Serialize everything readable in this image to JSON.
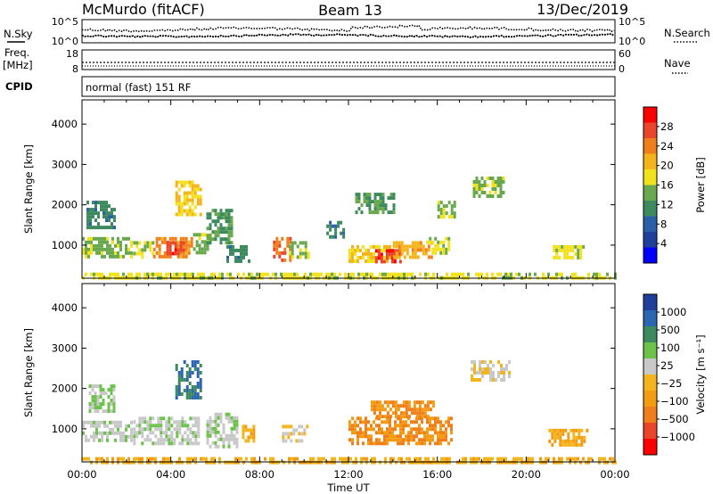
{
  "header": {
    "station": "McMurdo (fitACF)",
    "beam": "Beam 13",
    "date": "13/Dec/2019"
  },
  "noise_panel": {
    "left_label": "N.Sky",
    "right_label": "N.Search",
    "left_ticks": [
      "10^5",
      "10^0"
    ],
    "right_ticks": [
      "10^5",
      "10^0"
    ]
  },
  "freq_panel": {
    "left_label_1": "Freq.",
    "left_label_2": "[MHz]",
    "right_label": "Nave",
    "left_ticks": [
      "18",
      "8"
    ],
    "right_ticks": [
      "60",
      "0"
    ]
  },
  "cpid": {
    "label": "CPID",
    "value": "normal (fast) 151 RF"
  },
  "colorbars": {
    "power": {
      "label": "Power [dB]",
      "ticks": [
        "28",
        "24",
        "20",
        "16",
        "12",
        "8",
        "4"
      ],
      "colors": [
        "#ff0000",
        "#e8452a",
        "#f07e1a",
        "#f4b41c",
        "#f2e21e",
        "#6aa84f",
        "#3d8a5e",
        "#2b5fa8",
        "#1f3f9a",
        "#0000ff"
      ]
    },
    "velocity": {
      "label": "Velocity [m s⁻¹]",
      "ticks": [
        "1000",
        "500",
        "100",
        "25",
        "−25",
        "−100",
        "−500",
        "−1000"
      ],
      "colors": [
        "#1f3f9a",
        "#2b66b0",
        "#3d8a5e",
        "#6cc24a",
        "#c8c8c8",
        "#f4b41c",
        "#f39c12",
        "#f07e1a",
        "#e8452a",
        "#ff0000"
      ]
    }
  },
  "time_axis": {
    "label": "Time UT",
    "ticks": [
      "00:00",
      "04:00",
      "08:00",
      "12:00",
      "16:00",
      "20:00",
      "00:00"
    ]
  },
  "chart_data": [
    {
      "type": "heatmap",
      "title": "",
      "xlabel": "",
      "ylabel": "Slant Range [km]",
      "xlim": [
        0,
        24
      ],
      "ylim": [
        180,
        4600
      ],
      "y_ticks": [
        1000,
        2000,
        3000,
        4000
      ],
      "field": "power",
      "value_range": [
        0,
        30
      ],
      "patches": [
        {
          "t0": 0.0,
          "t1": 2.2,
          "r0": 700,
          "r1": 1200,
          "v": 14
        },
        {
          "t0": 0.2,
          "t1": 1.5,
          "r0": 1400,
          "r1": 2100,
          "v": 10
        },
        {
          "t0": 2.3,
          "t1": 3.2,
          "r0": 700,
          "r1": 1100,
          "v": 16
        },
        {
          "t0": 3.2,
          "t1": 5.0,
          "r0": 700,
          "r1": 1200,
          "v": 22
        },
        {
          "t0": 3.8,
          "t1": 4.6,
          "r0": 800,
          "r1": 1100,
          "v": 26
        },
        {
          "t0": 4.2,
          "t1": 5.4,
          "r0": 1800,
          "r1": 2600,
          "v": 18
        },
        {
          "t0": 5.0,
          "t1": 5.8,
          "r0": 800,
          "r1": 1300,
          "v": 14
        },
        {
          "t0": 5.6,
          "t1": 6.8,
          "r0": 1100,
          "r1": 1900,
          "v": 12
        },
        {
          "t0": 6.5,
          "t1": 7.5,
          "r0": 600,
          "r1": 1000,
          "v": 10
        },
        {
          "t0": 8.6,
          "t1": 9.4,
          "r0": 600,
          "r1": 1200,
          "v": 24
        },
        {
          "t0": 9.3,
          "t1": 10.2,
          "r0": 700,
          "r1": 1100,
          "v": 14
        },
        {
          "t0": 11.0,
          "t1": 11.8,
          "r0": 1200,
          "r1": 1600,
          "v": 10
        },
        {
          "t0": 12.0,
          "t1": 14.0,
          "r0": 600,
          "r1": 1000,
          "v": 18
        },
        {
          "t0": 13.2,
          "t1": 14.3,
          "r0": 600,
          "r1": 900,
          "v": 26
        },
        {
          "t0": 12.3,
          "t1": 14.0,
          "r0": 1800,
          "r1": 2300,
          "v": 12
        },
        {
          "t0": 14.0,
          "t1": 15.8,
          "r0": 700,
          "r1": 1100,
          "v": 20
        },
        {
          "t0": 15.5,
          "t1": 16.5,
          "r0": 800,
          "r1": 1200,
          "v": 16
        },
        {
          "t0": 16.0,
          "t1": 16.8,
          "r0": 1700,
          "r1": 2100,
          "v": 14
        },
        {
          "t0": 17.6,
          "t1": 19.0,
          "r0": 2200,
          "r1": 2700,
          "v": 14
        },
        {
          "t0": 21.2,
          "t1": 22.6,
          "r0": 700,
          "r1": 1000,
          "v": 16
        },
        {
          "t0": 0.0,
          "t1": 24.0,
          "r0": 190,
          "r1": 320,
          "v": 16
        }
      ]
    },
    {
      "type": "heatmap",
      "title": "",
      "xlabel": "Time UT",
      "ylabel": "Slant Range [km]",
      "xlim": [
        0,
        24
      ],
      "ylim": [
        180,
        4600
      ],
      "y_ticks": [
        1000,
        2000,
        3000,
        4000
      ],
      "field": "velocity",
      "value_range": [
        -1000,
        1000
      ],
      "patches": [
        {
          "t0": 0.0,
          "t1": 2.2,
          "r0": 700,
          "r1": 1200,
          "v": 150
        },
        {
          "t0": 0.3,
          "t1": 1.5,
          "r0": 1400,
          "r1": 2100,
          "v": 200
        },
        {
          "t0": 2.3,
          "t1": 5.2,
          "r0": 600,
          "r1": 1300,
          "v": 150
        },
        {
          "t0": 4.2,
          "t1": 5.4,
          "r0": 1800,
          "r1": 2700,
          "v": 600
        },
        {
          "t0": 5.6,
          "t1": 7.0,
          "r0": 600,
          "r1": 1400,
          "v": 150
        },
        {
          "t0": 7.2,
          "t1": 7.8,
          "r0": 700,
          "r1": 1100,
          "v": -150
        },
        {
          "t0": 9.0,
          "t1": 10.2,
          "r0": 700,
          "r1": 1100,
          "v": 20
        },
        {
          "t0": 12.0,
          "t1": 16.6,
          "r0": 600,
          "r1": 1300,
          "v": -400
        },
        {
          "t0": 13.0,
          "t1": 15.8,
          "r0": 1300,
          "r1": 1700,
          "v": -400
        },
        {
          "t0": 17.5,
          "t1": 19.2,
          "r0": 2200,
          "r1": 2700,
          "v": 10
        },
        {
          "t0": 21.0,
          "t1": 22.8,
          "r0": 600,
          "r1": 1000,
          "v": -200
        },
        {
          "t0": 0.0,
          "t1": 24.0,
          "r0": 190,
          "r1": 300,
          "v": -150
        }
      ]
    }
  ]
}
